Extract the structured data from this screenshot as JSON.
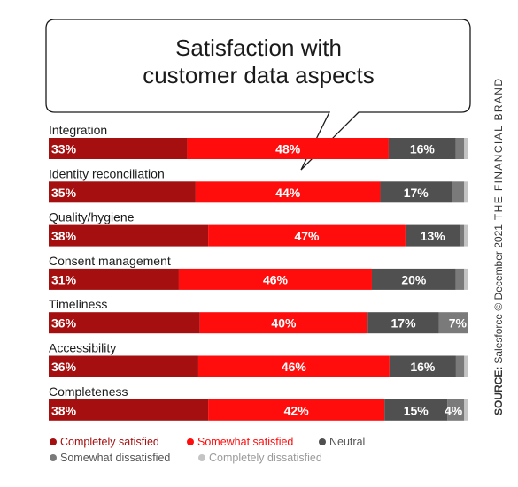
{
  "chart_data": {
    "type": "bar",
    "stacked": true,
    "orientation": "horizontal",
    "title": "Satisfaction with customer data aspects",
    "title_lines": [
      "Satisfaction with",
      "customer data aspects"
    ],
    "xlim": [
      0,
      100
    ],
    "categories": [
      "Integration",
      "Identity reconciliation",
      "Quality/hygiene",
      "Consent management",
      "Timeliness",
      "Accessibility",
      "Completeness"
    ],
    "series": [
      {
        "name": "Completely satisfied",
        "color": "#a50f0f",
        "values": [
          33,
          35,
          38,
          31,
          36,
          36,
          38
        ]
      },
      {
        "name": "Somewhat satisfied",
        "color": "#ff0d0d",
        "values": [
          48,
          44,
          47,
          46,
          40,
          46,
          42
        ]
      },
      {
        "name": "Neutral",
        "color": "#505050",
        "values": [
          16,
          17,
          13,
          20,
          17,
          16,
          15
        ]
      },
      {
        "name": "Somewhat dissatisfied",
        "color": "#7a7a7a",
        "values": [
          2,
          3,
          1,
          2,
          7,
          2,
          4
        ]
      },
      {
        "name": "Completely dissatisfied",
        "color": "#c4c4c4",
        "values": [
          1,
          1,
          1,
          1,
          0,
          1,
          1
        ]
      }
    ],
    "labeled_series": [
      0,
      1,
      2,
      3
    ],
    "legend_position": "bottom",
    "grid": false,
    "source_label": "SOURCE:",
    "source_text": "Salesforce © December 2021",
    "brand": "THE FINANCIAL BRAND"
  }
}
